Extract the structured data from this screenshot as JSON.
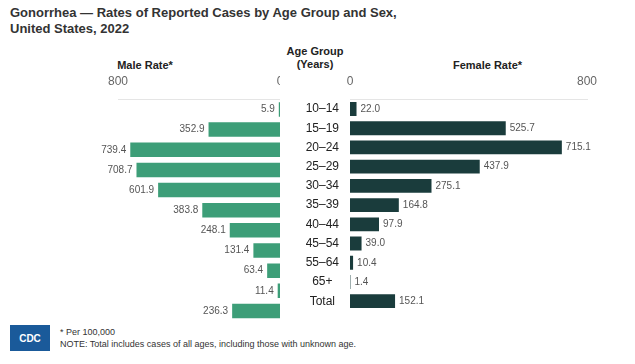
{
  "chart_data": {
    "type": "bar",
    "orientation": "horizontal",
    "title": "Gonorrhea — Rates of Reported Cases by Age Group and Sex,",
    "subtitle": "United States, 2022",
    "ylabel": [
      "Age Group",
      "(Years)"
    ],
    "categories": [
      "10–14",
      "15–19",
      "20–24",
      "25–29",
      "30–34",
      "35–39",
      "40–44",
      "45–54",
      "55–64",
      "65+",
      "Total"
    ],
    "series": [
      {
        "name": "Male Rate*",
        "color": "#3d9e78",
        "values": [
          5.9,
          352.9,
          739.4,
          708.7,
          601.9,
          383.8,
          248.1,
          131.4,
          63.4,
          11.4,
          236.3
        ]
      },
      {
        "name": "Female Rate*",
        "color": "#1a3c3c",
        "values": [
          22.0,
          525.7,
          715.1,
          437.9,
          275.1,
          164.8,
          97.9,
          39.0,
          10.4,
          1.4,
          152.1
        ],
        "value_labels": [
          "22.0",
          "525.7",
          "715.1",
          "437.9",
          "275.1",
          "164.8",
          "97.9",
          "39.0",
          "10.4",
          "1.4",
          "152.1"
        ]
      }
    ],
    "xlim": [
      0,
      800
    ],
    "xticks": [
      0,
      800
    ],
    "grid": false,
    "data_labels": true,
    "annotations": [
      "CDC",
      "* Per 100,000",
      "NOTE: Total includes cases of all ages, including those with unknown age."
    ]
  }
}
